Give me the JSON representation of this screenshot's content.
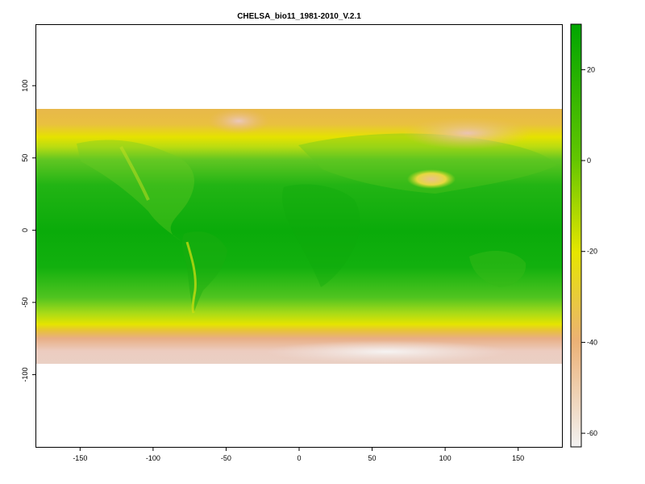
{
  "title": "CHELSA_bio11_1981-2010_V.2.1",
  "map": {
    "x_ticks": [
      "-150",
      "-100",
      "-50",
      "0",
      "50",
      "100",
      "150"
    ],
    "x_tick_values": [
      -150,
      -100,
      -50,
      0,
      50,
      100,
      150
    ],
    "y_ticks": [
      "100",
      "50",
      "0",
      "-50",
      "-100"
    ],
    "y_tick_values": [
      100,
      50,
      0,
      -50,
      -100
    ],
    "x_range": [
      -180,
      180
    ],
    "y_range": [
      -150,
      142
    ],
    "raster_lat_range": [
      -90,
      84
    ],
    "raster_lon_range": [
      -180,
      180
    ]
  },
  "legend": {
    "ticks": [
      "20",
      "0",
      "-20",
      "-40",
      "-60"
    ],
    "tick_values": [
      20,
      0,
      -20,
      -40,
      -60
    ],
    "range": [
      -63,
      30
    ],
    "colors": [
      "#f2f2f2",
      "#ecb176",
      "#e6e600",
      "#63c600",
      "#00a600"
    ],
    "color_stops": [
      -63,
      -40,
      -20,
      0,
      30
    ]
  },
  "colors": {
    "ocean_green": "#12b00e",
    "warm_green": "#0aab0a",
    "mid_green": "#52c31f",
    "yellow_green": "#b4dc10",
    "yellow": "#e8e600",
    "orange": "#e8bf3c",
    "tan": "#e9b98a",
    "pink": "#ebc4b6",
    "white": "#f4f0ee"
  }
}
